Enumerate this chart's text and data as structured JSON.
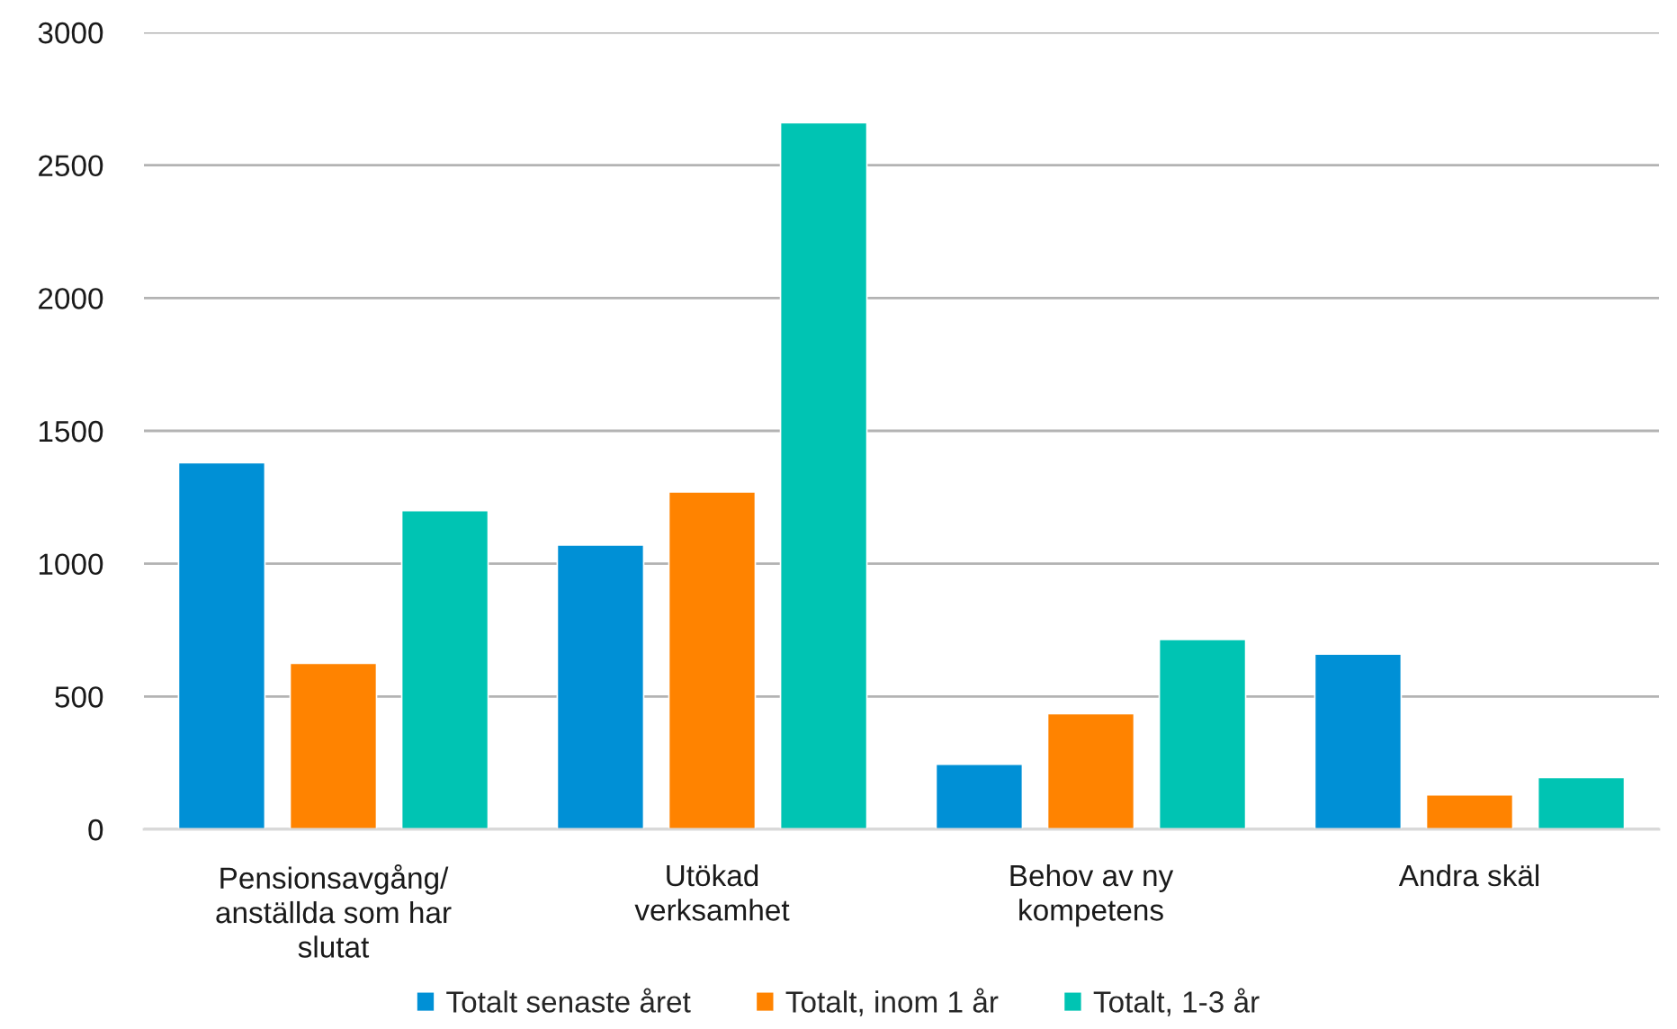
{
  "chart_data": {
    "type": "bar",
    "categories": [
      "Pensionsavgång/\nanställda som har\nslutat",
      "Utökad\nverksamhet",
      "Behov av ny\nkompetens",
      "Andra skäl"
    ],
    "series": [
      {
        "name": "Totalt senaste året",
        "color": "#0090d6",
        "values": [
          1380,
          1070,
          245,
          660
        ]
      },
      {
        "name": "Totalt, inom 1 år",
        "color": "#ff8300",
        "values": [
          625,
          1270,
          435,
          130
        ]
      },
      {
        "name": "Totalt, 1-3 år",
        "color": "#00c4b3",
        "values": [
          1200,
          2660,
          715,
          195
        ]
      }
    ],
    "ylim": [
      0,
      3000
    ],
    "yticks": [
      0,
      500,
      1000,
      1500,
      2000,
      2500,
      3000
    ],
    "grid": "y",
    "legend": "bottom"
  }
}
